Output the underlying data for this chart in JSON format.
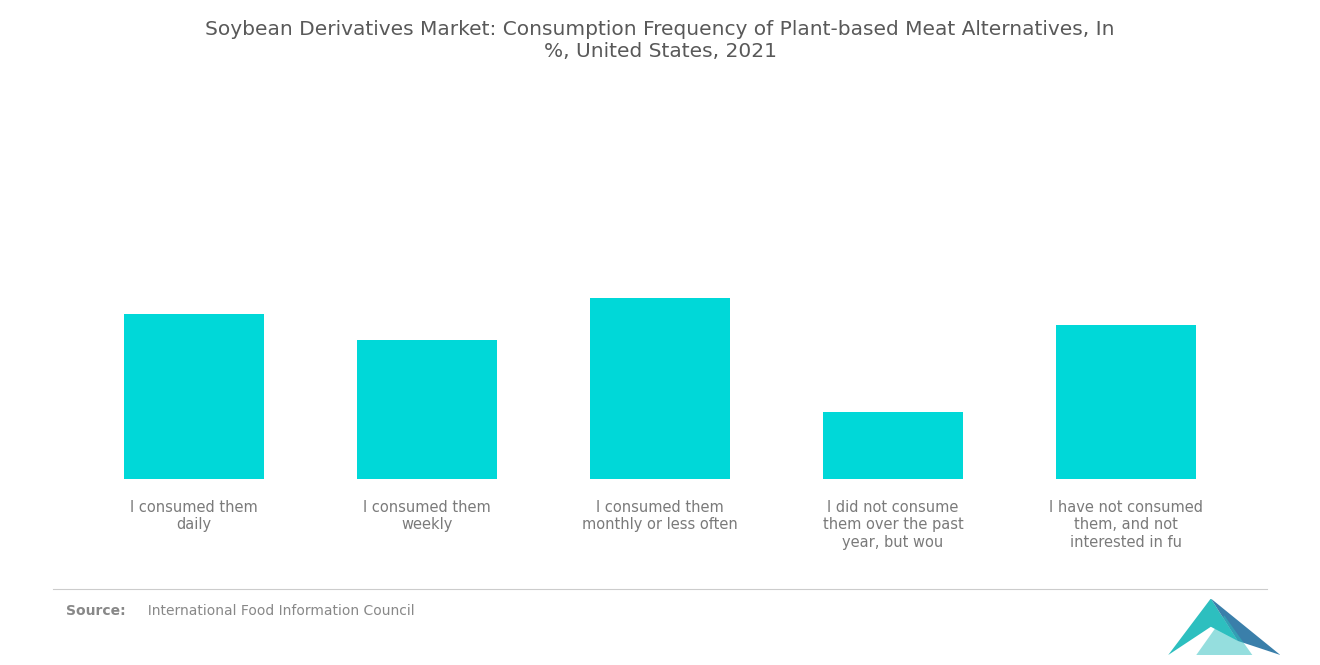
{
  "title": "Soybean Derivatives Market: Consumption Frequency of Plant-based Meat Alternatives, In\n%, United States, 2021",
  "categories": [
    "I consumed them\ndaily",
    "I consumed them\nweekly",
    "I consumed them\nmonthly or less often",
    "I did not consume\nthem over the past\nyear, but wou",
    "I have not consumed\nthem, and not\ninterested in fu"
  ],
  "values": [
    62,
    52,
    68,
    25,
    58
  ],
  "bar_color": "#00D8D8",
  "background_color": "#FFFFFF",
  "source_bold": "Source:",
  "source_text": "  International Food Information Council",
  "title_color": "#595959",
  "label_color": "#7A7A7A",
  "source_color": "#888888",
  "title_fontsize": 14.5,
  "label_fontsize": 10.5,
  "source_fontsize": 10,
  "ylim_max": 100
}
